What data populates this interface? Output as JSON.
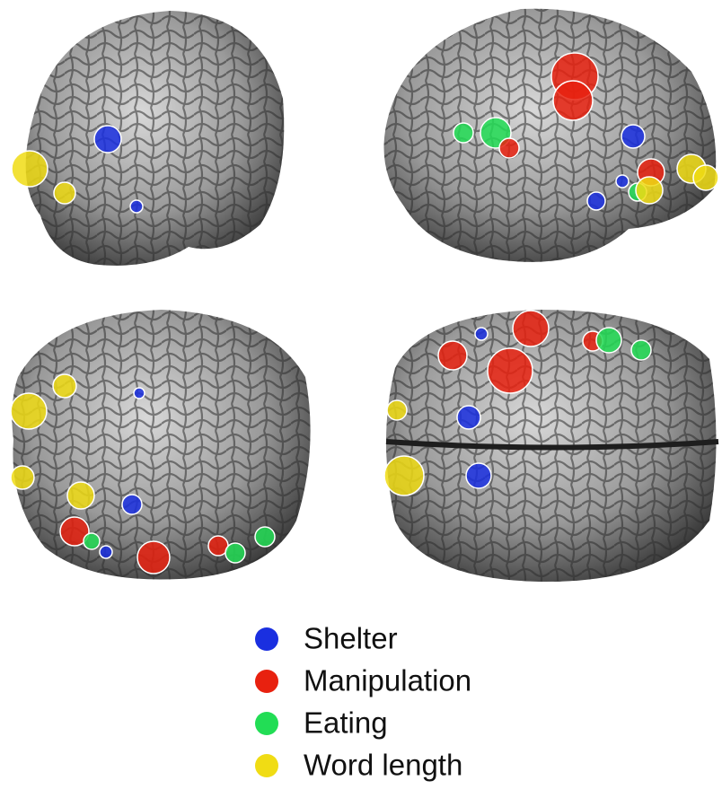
{
  "legend": {
    "items": [
      {
        "name": "Shelter",
        "color": "#1a2fe0"
      },
      {
        "name": "Manipulation",
        "color": "#e8210f"
      },
      {
        "name": "Eating",
        "color": "#22dd55"
      },
      {
        "name": "Word length",
        "color": "#f0dc14"
      }
    ]
  }
}
